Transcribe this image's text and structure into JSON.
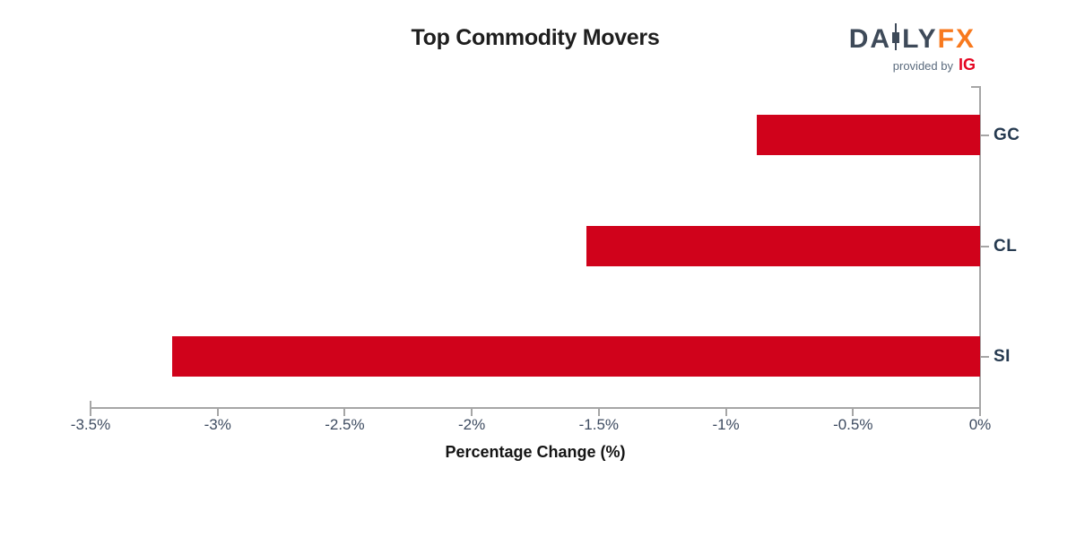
{
  "header": {
    "title": "Top Commodity Movers",
    "logo": {
      "brand_part1": "DA",
      "brand_part2": "LY",
      "brand_part3": "FX",
      "provided_by": "provided by",
      "provider": "IG"
    }
  },
  "chart_data": {
    "type": "bar",
    "orientation": "horizontal",
    "title": "Top Commodity Movers",
    "xlabel": "Percentage Change (%)",
    "ylabel": "",
    "categories": [
      "GC",
      "CL",
      "SI"
    ],
    "values": [
      -0.88,
      -1.55,
      -3.18
    ],
    "xlim": [
      -3.5,
      0
    ],
    "x_ticks": [
      -3.5,
      -3,
      -2.5,
      -2,
      -1.5,
      -1,
      -0.5,
      0
    ],
    "x_tick_labels": [
      "-3.5%",
      "-3%",
      "-2.5%",
      "-2%",
      "-1.5%",
      "-1%",
      "-0.5%",
      "0%"
    ],
    "grid": false,
    "legend": null,
    "category_axis_side": "right",
    "bar_color": "#d0021b"
  },
  "colors": {
    "bar_red": "#d0021b",
    "axis_gray": "#a6a6a6",
    "tick_label": "#3d4b60",
    "category_label": "#263a50",
    "title_text": "#1e1e1e",
    "logo_slate": "#3e4a59",
    "logo_orange": "#f8791d",
    "provided_gray": "#5a6a7d",
    "ig_red": "#e40521"
  }
}
